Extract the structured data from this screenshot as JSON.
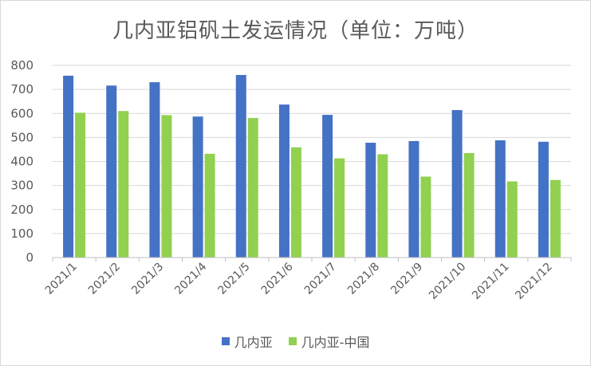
{
  "chart_data": {
    "type": "bar",
    "title": "几内亚铝矾土发运情况（单位：万吨）",
    "categories": [
      "2021/1",
      "2021/2",
      "2021/3",
      "2021/4",
      "2021/5",
      "2021/6",
      "2021/7",
      "2021/8",
      "2021/9",
      "2021/10",
      "2021/11",
      "2021/12"
    ],
    "series": [
      {
        "name": "几内亚",
        "color": "#4472c4",
        "values": [
          757,
          716,
          730,
          587,
          760,
          637,
          594,
          478,
          485,
          614,
          488,
          482
        ]
      },
      {
        "name": "几内亚-中国",
        "color": "#92d050",
        "values": [
          603,
          610,
          593,
          432,
          581,
          459,
          413,
          430,
          337,
          435,
          317,
          323
        ]
      }
    ],
    "ylim": [
      0,
      800
    ],
    "yticks": [
      0,
      100,
      200,
      300,
      400,
      500,
      600,
      700,
      800
    ],
    "grid": true,
    "legend": "bottom"
  }
}
